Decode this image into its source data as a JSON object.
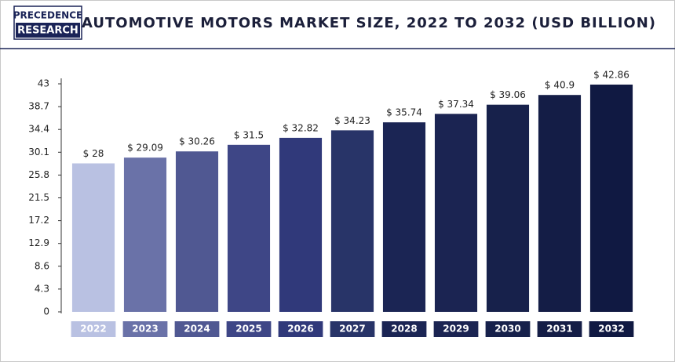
{
  "logo": [
    "PRECEDENCE",
    "RESEARCH"
  ],
  "chart_data": {
    "type": "bar",
    "title": "AUTOMOTIVE MOTORS MARKET SIZE, 2022 TO 2032 (USD BILLION)",
    "categories": [
      "2022",
      "2023",
      "2024",
      "2025",
      "2026",
      "2027",
      "2028",
      "2029",
      "2030",
      "2031",
      "2032"
    ],
    "values": [
      28,
      29.09,
      30.26,
      31.5,
      32.82,
      34.23,
      35.74,
      37.34,
      39.06,
      40.9,
      42.86
    ],
    "value_labels": [
      "$ 28",
      "$ 29.09",
      "$ 30.26",
      "$ 31.5",
      "$ 32.82",
      "$ 34.23",
      "$ 35.74",
      "$ 37.34",
      "$ 39.06",
      "$ 40.9",
      "$ 42.86"
    ],
    "colors": [
      "#b9c1e2",
      "#6a72a8",
      "#505892",
      "#3e4686",
      "#30397a",
      "#283468",
      "#1b2554",
      "#1b2452",
      "#17214b",
      "#141d46",
      "#101942"
    ],
    "ylim": [
      0,
      43
    ],
    "yticks": [
      0,
      4.3,
      8.6,
      12.9,
      17.2,
      21.5,
      25.8,
      30.1,
      34.4,
      38.7,
      43
    ],
    "grid": false
  }
}
